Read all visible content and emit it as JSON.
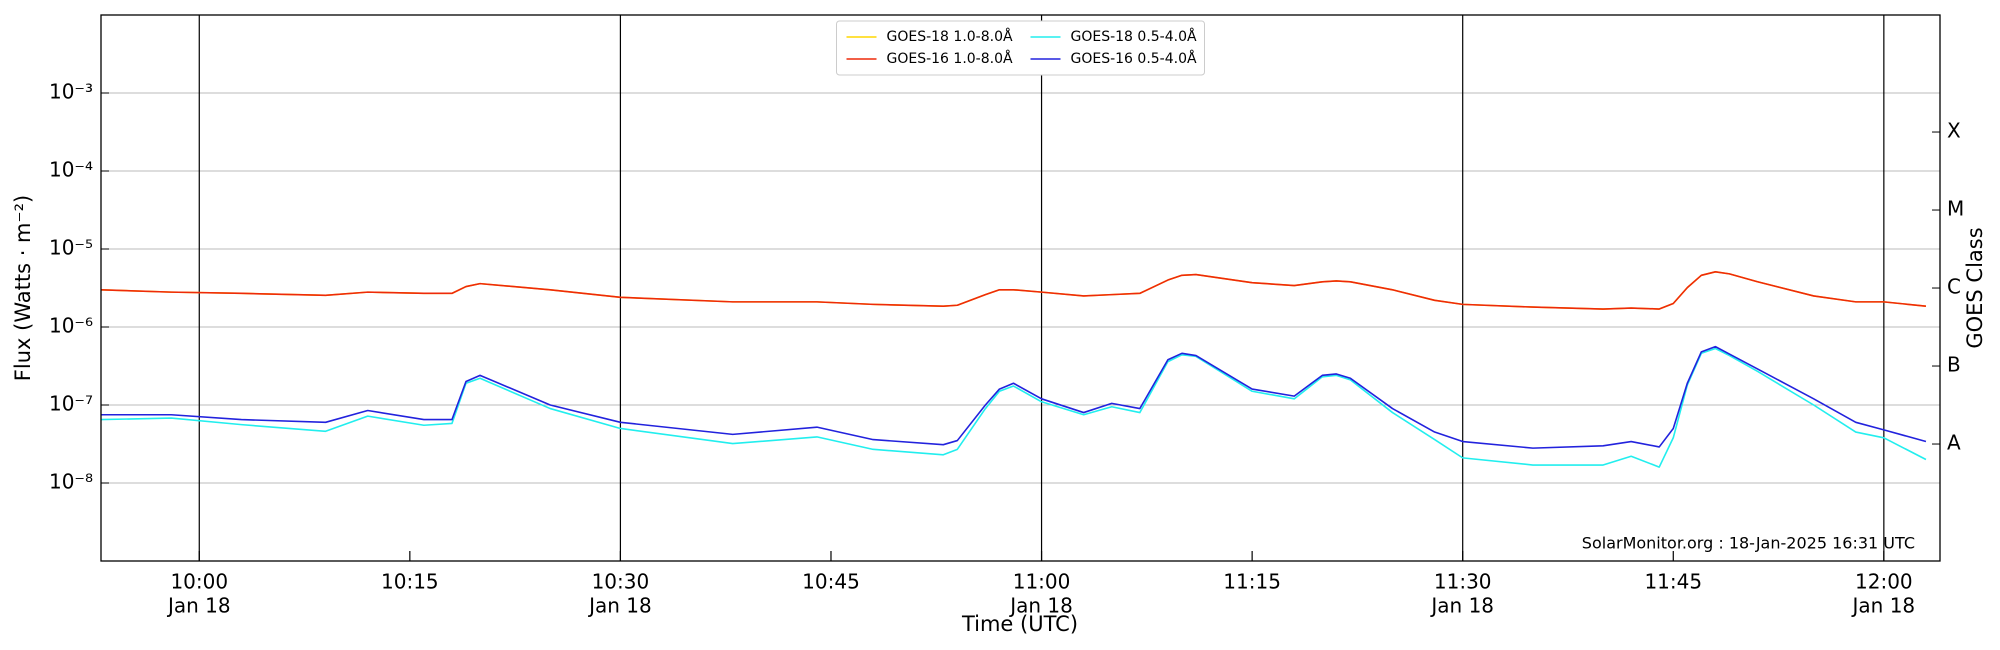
{
  "chart_data": {
    "type": "line",
    "xlabel": "Time (UTC)",
    "ylabel": "Flux (Watts · m⁻²)",
    "y2label": "GOES Class",
    "annotation": "SolarMonitor.org : 18-Jan-2025 16:31 UTC",
    "yscale": "log",
    "grid": true,
    "legend": "upper center",
    "legend_columns": 2,
    "xlim": [
      "09:53",
      "12:04"
    ],
    "xticks": [
      {
        "value": "10:00",
        "label": [
          "10:00",
          "Jan 18"
        ]
      },
      {
        "value": "10:15",
        "label": [
          "10:15"
        ]
      },
      {
        "value": "10:30",
        "label": [
          "10:30",
          "Jan 18"
        ]
      },
      {
        "value": "10:45",
        "label": [
          "10:45"
        ]
      },
      {
        "value": "11:00",
        "label": [
          "11:00",
          "Jan 18"
        ]
      },
      {
        "value": "11:15",
        "label": [
          "11:15"
        ]
      },
      {
        "value": "11:30",
        "label": [
          "11:30",
          "Jan 18"
        ]
      },
      {
        "value": "11:45",
        "label": [
          "11:45"
        ]
      },
      {
        "value": "12:00",
        "label": [
          "12:00",
          "Jan 18"
        ]
      }
    ],
    "ylim": [
      1e-09,
      0.01
    ],
    "yticks": [
      {
        "value": 1e-08,
        "label": "10⁻⁸"
      },
      {
        "value": 1e-07,
        "label": "10⁻⁷"
      },
      {
        "value": 1e-06,
        "label": "10⁻⁶"
      },
      {
        "value": 1e-05,
        "label": "10⁻⁵"
      },
      {
        "value": 0.0001,
        "label": "10⁻⁴"
      },
      {
        "value": 0.001,
        "label": "10⁻³"
      }
    ],
    "y2lim": [
      1e-09,
      0.01
    ],
    "y2ticks": [
      {
        "value": 3.16e-08,
        "label": "A"
      },
      {
        "value": 3.16e-07,
        "label": "B"
      },
      {
        "value": 3.16e-06,
        "label": "C"
      },
      {
        "value": 3.16e-05,
        "label": "M"
      },
      {
        "value": 0.000316,
        "label": "X"
      }
    ],
    "x": [
      "09:53",
      "09:58",
      "10:03",
      "10:09",
      "10:12",
      "10:16",
      "10:18",
      "10:19",
      "10:20",
      "10:25",
      "10:30",
      "10:38",
      "10:44",
      "10:48",
      "10:53",
      "10:54",
      "10:56",
      "10:57",
      "10:58",
      "11:00",
      "11:03",
      "11:05",
      "11:07",
      "11:09",
      "11:10",
      "11:11",
      "11:15",
      "11:18",
      "11:20",
      "11:21",
      "11:22",
      "11:25",
      "11:28",
      "11:30",
      "11:35",
      "11:40",
      "11:42",
      "11:44",
      "11:45",
      "11:46",
      "11:47",
      "11:48",
      "11:49",
      "11:51",
      "11:55",
      "11:58",
      "12:00",
      "12:03"
    ],
    "series": [
      {
        "name": "GOES-18 1.0-8.0Å",
        "color": "#ffd700",
        "values": [
          3e-06,
          2.8e-06,
          2.7e-06,
          2.55e-06,
          2.8e-06,
          2.7e-06,
          2.7e-06,
          3.3e-06,
          3.6e-06,
          3e-06,
          2.4e-06,
          2.1e-06,
          2.1e-06,
          1.95e-06,
          1.85e-06,
          1.9e-06,
          2.6e-06,
          3e-06,
          3e-06,
          2.8e-06,
          2.5e-06,
          2.6e-06,
          2.7e-06,
          4e-06,
          4.6e-06,
          4.7e-06,
          3.7e-06,
          3.4e-06,
          3.8e-06,
          3.9e-06,
          3.8e-06,
          3e-06,
          2.2e-06,
          1.95e-06,
          1.8e-06,
          1.7e-06,
          1.75e-06,
          1.7e-06,
          2e-06,
          3.2e-06,
          4.6e-06,
          5.1e-06,
          4.8e-06,
          3.8e-06,
          2.5e-06,
          2.1e-06,
          2.1e-06,
          1.85e-06
        ]
      },
      {
        "name": "GOES-16 1.0-8.0Å",
        "color": "#ee2a0a",
        "values": [
          3e-06,
          2.8e-06,
          2.7e-06,
          2.55e-06,
          2.8e-06,
          2.7e-06,
          2.7e-06,
          3.3e-06,
          3.6e-06,
          3e-06,
          2.4e-06,
          2.1e-06,
          2.1e-06,
          1.95e-06,
          1.85e-06,
          1.9e-06,
          2.6e-06,
          3e-06,
          3e-06,
          2.8e-06,
          2.5e-06,
          2.6e-06,
          2.7e-06,
          4e-06,
          4.6e-06,
          4.7e-06,
          3.7e-06,
          3.4e-06,
          3.8e-06,
          3.9e-06,
          3.8e-06,
          3e-06,
          2.2e-06,
          1.95e-06,
          1.8e-06,
          1.7e-06,
          1.75e-06,
          1.7e-06,
          2e-06,
          3.2e-06,
          4.6e-06,
          5.1e-06,
          4.8e-06,
          3.8e-06,
          2.5e-06,
          2.1e-06,
          2.1e-06,
          1.85e-06
        ]
      },
      {
        "name": "GOES-18 0.5-4.0Å",
        "color": "#22eeee",
        "values": [
          6.5e-08,
          6.8e-08,
          5.6e-08,
          4.6e-08,
          7.2e-08,
          5.5e-08,
          5.8e-08,
          1.9e-07,
          2.2e-07,
          9e-08,
          5e-08,
          3.2e-08,
          3.9e-08,
          2.7e-08,
          2.3e-08,
          2.7e-08,
          9e-08,
          1.5e-07,
          1.75e-07,
          1.1e-07,
          7.5e-08,
          9.5e-08,
          8e-08,
          3.6e-07,
          4.4e-07,
          4.2e-07,
          1.5e-07,
          1.2e-07,
          2.3e-07,
          2.4e-07,
          2.1e-07,
          8e-08,
          3.6e-08,
          2.1e-08,
          1.7e-08,
          1.7e-08,
          2.2e-08,
          1.6e-08,
          3.8e-08,
          1.8e-07,
          4.6e-07,
          5.3e-07,
          4.3e-07,
          2.7e-07,
          1e-07,
          4.5e-08,
          3.8e-08,
          2e-08
        ]
      },
      {
        "name": "GOES-16 0.5-4.0Å",
        "color": "#2222dd",
        "values": [
          7.5e-08,
          7.5e-08,
          6.5e-08,
          6e-08,
          8.5e-08,
          6.5e-08,
          6.5e-08,
          2e-07,
          2.4e-07,
          1e-07,
          6e-08,
          4.2e-08,
          5.2e-08,
          3.6e-08,
          3.1e-08,
          3.5e-08,
          1e-07,
          1.6e-07,
          1.9e-07,
          1.2e-07,
          8e-08,
          1.05e-07,
          9e-08,
          3.8e-07,
          4.6e-07,
          4.3e-07,
          1.6e-07,
          1.3e-07,
          2.4e-07,
          2.5e-07,
          2.2e-07,
          9e-08,
          4.5e-08,
          3.4e-08,
          2.8e-08,
          3e-08,
          3.4e-08,
          2.9e-08,
          5e-08,
          1.9e-07,
          4.8e-07,
          5.6e-07,
          4.5e-07,
          2.9e-07,
          1.2e-07,
          6e-08,
          4.8e-08,
          3.4e-08
        ]
      }
    ]
  }
}
